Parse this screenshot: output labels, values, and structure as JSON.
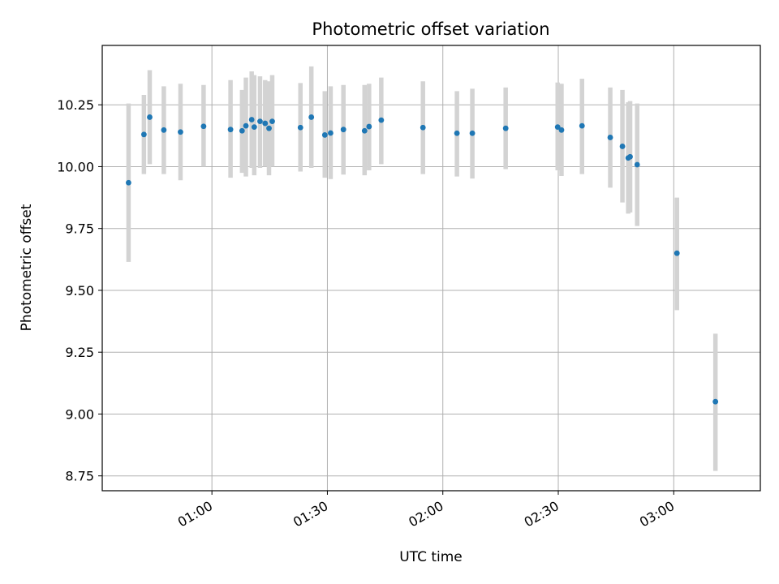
{
  "chart_data": {
    "type": "scatter",
    "title": "Photometric offset variation",
    "xlabel": "UTC time",
    "ylabel": "Photometric offset",
    "x_axis_type": "time",
    "x_range": [
      "00:31:30",
      "03:22:30"
    ],
    "ylim": [
      8.69,
      10.49
    ],
    "x_ticks": [
      {
        "time": "01:00",
        "label": "01:00"
      },
      {
        "time": "01:30",
        "label": "01:30"
      },
      {
        "time": "02:00",
        "label": "02:00"
      },
      {
        "time": "02:30",
        "label": "02:30"
      },
      {
        "time": "03:00",
        "label": "03:00"
      }
    ],
    "y_ticks": [
      8.75,
      9.0,
      9.25,
      9.5,
      9.75,
      10.0,
      10.25
    ],
    "y_tick_labels": [
      "8.75",
      "9.00",
      "9.25",
      "9.50",
      "9.75",
      "10.00",
      "10.25"
    ],
    "grid": true,
    "point_color": "#1f77b4",
    "errorbar_color": "#d3d3d3",
    "points": [
      {
        "t": "00:38:20",
        "y": 9.935,
        "lo": 9.615,
        "hi": 10.255
      },
      {
        "t": "00:42:20",
        "y": 10.13,
        "lo": 9.97,
        "hi": 10.29
      },
      {
        "t": "00:43:50",
        "y": 10.2,
        "lo": 10.01,
        "hi": 10.39
      },
      {
        "t": "00:47:30",
        "y": 10.148,
        "lo": 9.97,
        "hi": 10.325
      },
      {
        "t": "00:51:50",
        "y": 10.14,
        "lo": 9.945,
        "hi": 10.335
      },
      {
        "t": "00:57:50",
        "y": 10.163,
        "lo": 10.0,
        "hi": 10.33
      },
      {
        "t": "01:04:50",
        "y": 10.15,
        "lo": 9.955,
        "hi": 10.35
      },
      {
        "t": "01:07:50",
        "y": 10.145,
        "lo": 9.975,
        "hi": 10.31
      },
      {
        "t": "01:08:50",
        "y": 10.165,
        "lo": 9.96,
        "hi": 10.36
      },
      {
        "t": "01:10:20",
        "y": 10.19,
        "lo": 9.995,
        "hi": 10.385
      },
      {
        "t": "01:11:00",
        "y": 10.16,
        "lo": 9.965,
        "hi": 10.37
      },
      {
        "t": "01:12:30",
        "y": 10.183,
        "lo": 9.995,
        "hi": 10.365
      },
      {
        "t": "01:13:50",
        "y": 10.175,
        "lo": 10.0,
        "hi": 10.35
      },
      {
        "t": "01:14:50",
        "y": 10.155,
        "lo": 9.965,
        "hi": 10.345
      },
      {
        "t": "01:15:40",
        "y": 10.183,
        "lo": 10.0,
        "hi": 10.37
      },
      {
        "t": "01:23:00",
        "y": 10.158,
        "lo": 9.98,
        "hi": 10.338
      },
      {
        "t": "01:25:50",
        "y": 10.2,
        "lo": 9.995,
        "hi": 10.405
      },
      {
        "t": "01:29:20",
        "y": 10.128,
        "lo": 9.955,
        "hi": 10.305
      },
      {
        "t": "01:30:50",
        "y": 10.136,
        "lo": 9.95,
        "hi": 10.325
      },
      {
        "t": "01:34:10",
        "y": 10.15,
        "lo": 9.968,
        "hi": 10.33
      },
      {
        "t": "01:39:40",
        "y": 10.145,
        "lo": 9.965,
        "hi": 10.33
      },
      {
        "t": "01:40:50",
        "y": 10.162,
        "lo": 9.985,
        "hi": 10.335
      },
      {
        "t": "01:44:00",
        "y": 10.188,
        "lo": 10.01,
        "hi": 10.36
      },
      {
        "t": "01:54:50",
        "y": 10.158,
        "lo": 9.97,
        "hi": 10.345
      },
      {
        "t": "02:03:40",
        "y": 10.135,
        "lo": 9.96,
        "hi": 10.305
      },
      {
        "t": "02:07:40",
        "y": 10.135,
        "lo": 9.952,
        "hi": 10.315
      },
      {
        "t": "02:16:20",
        "y": 10.155,
        "lo": 9.99,
        "hi": 10.32
      },
      {
        "t": "02:29:50",
        "y": 10.16,
        "lo": 9.985,
        "hi": 10.34
      },
      {
        "t": "02:30:50",
        "y": 10.148,
        "lo": 9.962,
        "hi": 10.335
      },
      {
        "t": "02:36:10",
        "y": 10.165,
        "lo": 9.97,
        "hi": 10.355
      },
      {
        "t": "02:43:30",
        "y": 10.118,
        "lo": 9.915,
        "hi": 10.32
      },
      {
        "t": "02:46:40",
        "y": 10.082,
        "lo": 9.855,
        "hi": 10.31
      },
      {
        "t": "02:48:10",
        "y": 10.035,
        "lo": 9.81,
        "hi": 10.26
      },
      {
        "t": "02:48:40",
        "y": 10.04,
        "lo": 9.815,
        "hi": 10.265
      },
      {
        "t": "02:50:30",
        "y": 10.008,
        "lo": 9.76,
        "hi": 10.255
      },
      {
        "t": "03:00:50",
        "y": 9.65,
        "lo": 9.42,
        "hi": 9.875
      },
      {
        "t": "03:10:50",
        "y": 9.05,
        "lo": 8.77,
        "hi": 9.325
      }
    ]
  }
}
